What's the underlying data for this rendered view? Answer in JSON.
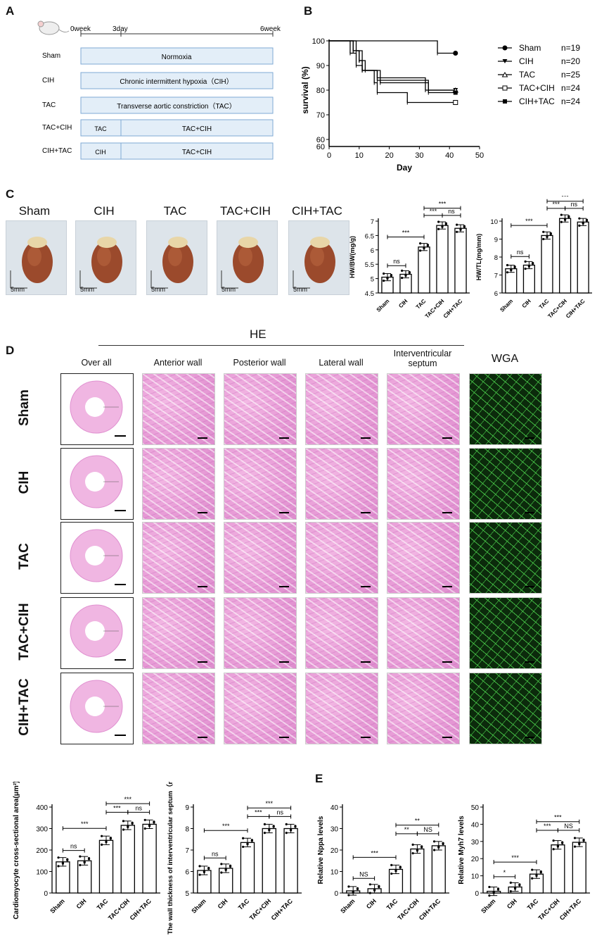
{
  "panel_labels": {
    "a": "A",
    "b": "B",
    "c": "C",
    "d": "D",
    "e": "E"
  },
  "timeline": {
    "ticks": [
      "0week",
      "3day",
      "6week"
    ],
    "rows": [
      {
        "group": "Sham",
        "bars": [
          "Normoxia"
        ]
      },
      {
        "group": "CIH",
        "bars": [
          "Chronic intermittent hypoxia（CIH）"
        ]
      },
      {
        "group": "TAC",
        "bars": [
          "Transverse aortic constriction（TAC）"
        ]
      },
      {
        "group": "TAC+CIH",
        "bars": [
          "TAC",
          "TAC+CIH"
        ]
      },
      {
        "group": "CIH+TAC",
        "bars": [
          "CIH",
          "TAC+CIH"
        ]
      }
    ]
  },
  "heart_photos": {
    "groups": [
      "Sham",
      "CIH",
      "TAC",
      "TAC+CIH",
      "CIH+TAC"
    ],
    "scale": "5mm"
  },
  "histology": {
    "he_title": "HE",
    "columns": [
      "Over all",
      "Anterior wall",
      "Posterior wall",
      "Lateral wall",
      "Interventricular septum",
      "WGA"
    ],
    "rows": [
      "Sham",
      "CIH",
      "TAC",
      "TAC+CIH",
      "CIH+TAC"
    ]
  },
  "chart_data": [
    {
      "panel": "B",
      "type": "line",
      "step": true,
      "xlabel": "Day",
      "ylabel": "survival (%)",
      "xlim": [
        0,
        50
      ],
      "ylim": [
        60,
        100
      ],
      "xticks": [
        0,
        10,
        20,
        30,
        40,
        50
      ],
      "yticks": [
        60,
        70,
        80,
        90,
        100
      ],
      "series": [
        {
          "name": "Sham",
          "n": "n=19",
          "marker": "circle",
          "points": [
            [
              0,
              100
            ],
            [
              36,
              100
            ],
            [
              36,
              95
            ],
            [
              42,
              95
            ]
          ]
        },
        {
          "name": "CIH",
          "n": "n=20",
          "marker": "tri-down",
          "points": [
            [
              0,
              100
            ],
            [
              7,
              100
            ],
            [
              7,
              95
            ],
            [
              9,
              95
            ],
            [
              9,
              90
            ],
            [
              11,
              90
            ],
            [
              11,
              88
            ],
            [
              16,
              88
            ],
            [
              16,
              85
            ],
            [
              32,
              85
            ],
            [
              32,
              80
            ],
            [
              42,
              80
            ]
          ]
        },
        {
          "name": "TAC",
          "n": "n=25",
          "marker": "tri-up",
          "points": [
            [
              0,
              100
            ],
            [
              8,
              100
            ],
            [
              8,
              96
            ],
            [
              10,
              96
            ],
            [
              10,
              92
            ],
            [
              12,
              92
            ],
            [
              12,
              88
            ],
            [
              16,
              88
            ],
            [
              16,
              84
            ],
            [
              33,
              84
            ],
            [
              33,
              80
            ],
            [
              42,
              80
            ]
          ]
        },
        {
          "name": "TAC+CIH",
          "n": "n=24",
          "marker": "square",
          "points": [
            [
              0,
              100
            ],
            [
              8,
              100
            ],
            [
              8,
              96
            ],
            [
              10,
              96
            ],
            [
              10,
              92
            ],
            [
              11,
              92
            ],
            [
              11,
              88
            ],
            [
              15,
              88
            ],
            [
              15,
              83
            ],
            [
              16,
              83
            ],
            [
              16,
              79
            ],
            [
              26,
              79
            ],
            [
              26,
              75
            ],
            [
              42,
              75
            ]
          ]
        },
        {
          "name": "CIH+TAC",
          "n": "n=24",
          "marker": "filled-square",
          "points": [
            [
              0,
              100
            ],
            [
              9,
              100
            ],
            [
              9,
              96
            ],
            [
              11,
              96
            ],
            [
              11,
              88
            ],
            [
              17,
              88
            ],
            [
              17,
              83
            ],
            [
              33,
              83
            ],
            [
              33,
              79
            ],
            [
              42,
              79
            ]
          ]
        }
      ]
    },
    {
      "panel": "C-left",
      "type": "bar",
      "ylabel": "HW/BW(mg/g)",
      "categories": [
        "Sham",
        "CIH",
        "TAC",
        "TAC+CIH",
        "CIH+TAC"
      ],
      "values": [
        5.05,
        5.15,
        6.1,
        6.85,
        6.75
      ],
      "ylim": [
        4.5,
        7.0
      ],
      "yticks": [
        4.5,
        5.0,
        5.5,
        6.0,
        6.5,
        7.0
      ],
      "sig": [
        {
          "from": 0,
          "to": 1,
          "label": "ns"
        },
        {
          "from": 0,
          "to": 2,
          "label": "***"
        },
        {
          "from": 2,
          "to": 3,
          "label": "***"
        },
        {
          "from": 3,
          "to": 4,
          "label": "ns"
        },
        {
          "from": 2,
          "to": 4,
          "label": "***"
        }
      ]
    },
    {
      "panel": "C-right",
      "type": "bar",
      "ylabel": "HW/TL(mg/mm)",
      "categories": [
        "Sham",
        "CIH",
        "TAC",
        "TAC+CIH",
        "CIH+TAC"
      ],
      "values": [
        7.35,
        7.55,
        9.2,
        10.15,
        9.95
      ],
      "ylim": [
        6,
        10
      ],
      "yticks": [
        6,
        7,
        8,
        9,
        10
      ],
      "sig": [
        {
          "from": 0,
          "to": 1,
          "label": "ns"
        },
        {
          "from": 0,
          "to": 2,
          "label": "***"
        },
        {
          "from": 2,
          "to": 3,
          "label": "***"
        },
        {
          "from": 3,
          "to": 4,
          "label": "ns"
        },
        {
          "from": 2,
          "to": 4,
          "label": "***"
        }
      ]
    },
    {
      "panel": "D-left",
      "type": "bar",
      "ylabel": "Cardiomyocyte cross-sectional area(μm²)",
      "categories": [
        "Sham",
        "CIH",
        "TAC",
        "TAC+CIH",
        "CIH+TAC"
      ],
      "values": [
        145,
        150,
        245,
        315,
        320
      ],
      "ylim": [
        0,
        400
      ],
      "yticks": [
        0,
        100,
        200,
        300,
        400
      ],
      "sig": [
        {
          "from": 0,
          "to": 1,
          "label": "ns"
        },
        {
          "from": 0,
          "to": 2,
          "label": "***"
        },
        {
          "from": 2,
          "to": 3,
          "label": "***"
        },
        {
          "from": 3,
          "to": 4,
          "label": "ns"
        },
        {
          "from": 2,
          "to": 4,
          "label": "***"
        }
      ]
    },
    {
      "panel": "D-right",
      "type": "bar",
      "ylabel": "The wall thickness of interventricular septum（mm）",
      "categories": [
        "Sham",
        "CIH",
        "TAC",
        "TAC+CIH",
        "CIH+TAC"
      ],
      "values": [
        6.05,
        6.15,
        7.35,
        8.0,
        8.0
      ],
      "ylim": [
        5,
        9
      ],
      "yticks": [
        5,
        6,
        7,
        8,
        9
      ],
      "sig": [
        {
          "from": 0,
          "to": 1,
          "label": "ns"
        },
        {
          "from": 0,
          "to": 2,
          "label": "***"
        },
        {
          "from": 2,
          "to": 3,
          "label": "***"
        },
        {
          "from": 3,
          "to": 4,
          "label": "ns"
        },
        {
          "from": 2,
          "to": 4,
          "label": "***"
        }
      ]
    },
    {
      "panel": "E-left",
      "type": "bar",
      "ylabel": "Relative Nppa levels",
      "categories": [
        "Sham",
        "CIH",
        "TAC",
        "TAC+CIH",
        "CIH+TAC"
      ],
      "values": [
        1,
        2,
        11,
        20.5,
        22
      ],
      "ylim": [
        0,
        40
      ],
      "yticks": [
        0,
        10,
        20,
        30,
        40
      ],
      "sig": [
        {
          "from": 0,
          "to": 1,
          "label": "NS"
        },
        {
          "from": 0,
          "to": 2,
          "label": "***"
        },
        {
          "from": 2,
          "to": 3,
          "label": "**"
        },
        {
          "from": 3,
          "to": 4,
          "label": "NS"
        },
        {
          "from": 2,
          "to": 4,
          "label": "**"
        }
      ]
    },
    {
      "panel": "E-right",
      "type": "bar",
      "ylabel": "Relative Myh7 levels",
      "categories": [
        "Sham",
        "CIH",
        "TAC",
        "TAC+CIH",
        "CIH+TAC"
      ],
      "values": [
        1,
        3.5,
        11,
        28,
        29.5
      ],
      "ylim": [
        0,
        50
      ],
      "yticks": [
        0,
        10,
        20,
        30,
        40,
        50
      ],
      "sig": [
        {
          "from": 0,
          "to": 1,
          "label": "*"
        },
        {
          "from": 0,
          "to": 2,
          "label": "***"
        },
        {
          "from": 2,
          "to": 3,
          "label": "***"
        },
        {
          "from": 3,
          "to": 4,
          "label": "NS"
        },
        {
          "from": 2,
          "to": 4,
          "label": "***"
        }
      ]
    }
  ]
}
